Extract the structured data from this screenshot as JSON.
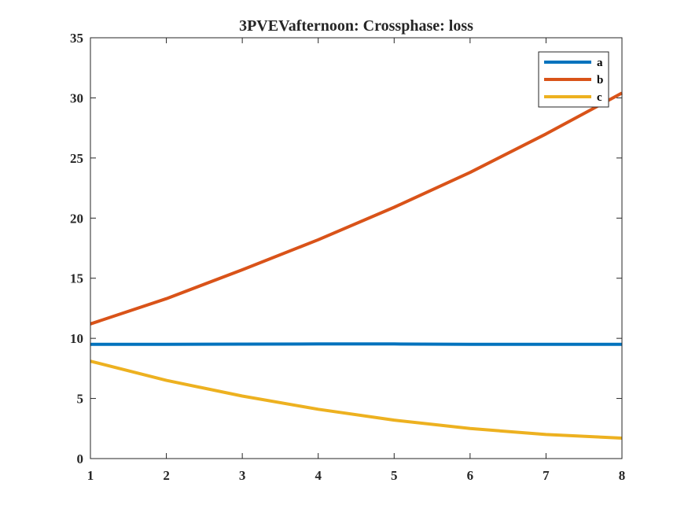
{
  "chart_data": {
    "type": "line",
    "title": "3PVEVafternoon: Crossphase: loss",
    "xlabel": "",
    "ylabel": "",
    "xlim": [
      1,
      8
    ],
    "ylim": [
      0,
      35
    ],
    "xticks": [
      1,
      2,
      3,
      4,
      5,
      6,
      7,
      8
    ],
    "yticks": [
      0,
      5,
      10,
      15,
      20,
      25,
      30,
      35
    ],
    "grid": false,
    "legend_position": "top-right",
    "x": [
      1,
      2,
      3,
      4,
      5,
      6,
      7,
      8
    ],
    "series": [
      {
        "name": "a",
        "color": "#0072BD",
        "values": [
          9.5,
          9.5,
          9.52,
          9.53,
          9.53,
          9.5,
          9.5,
          9.5
        ]
      },
      {
        "name": "b",
        "color": "#D95319",
        "values": [
          11.2,
          13.3,
          15.7,
          18.2,
          20.9,
          23.8,
          27.0,
          30.4
        ]
      },
      {
        "name": "c",
        "color": "#EDB120",
        "values": [
          8.1,
          6.5,
          5.2,
          4.1,
          3.2,
          2.5,
          2.0,
          1.7
        ]
      }
    ]
  }
}
